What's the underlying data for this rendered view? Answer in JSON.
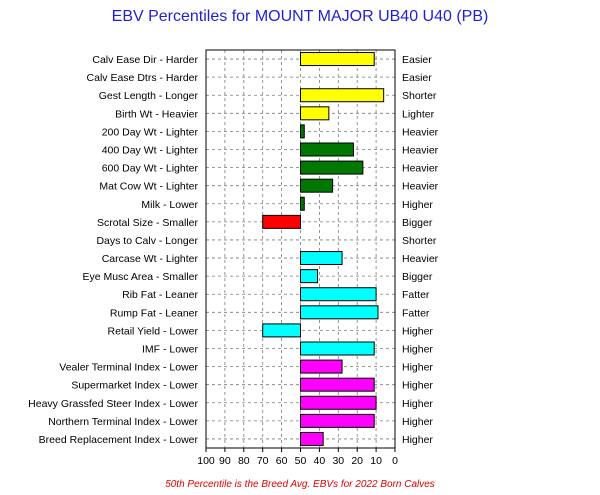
{
  "chart_data": {
    "type": "bar",
    "orientation": "horizontal",
    "title": "EBV Percentiles for MOUNT MAJOR UB40 U40 (PB)",
    "footnote": "50th Percentile is the Breed Avg. EBVs for 2022 Born Calves",
    "xlim": [
      100,
      0
    ],
    "xticks": [
      "100",
      "90",
      "80",
      "70",
      "60",
      "50",
      "40",
      "30",
      "20",
      "10",
      "0"
    ],
    "baseline": 50,
    "grid": true,
    "categories": [
      "Calv Ease Dir - Harder",
      "Calv Ease Dtrs - Harder",
      "Gest Length - Longer",
      "Birth Wt - Heavier",
      "200 Day Wt - Lighter",
      "400 Day Wt - Lighter",
      "600 Day Wt - Lighter",
      "Mat Cow Wt - Lighter",
      "Milk - Lower",
      "Scrotal Size - Smaller",
      "Days to Calv - Longer",
      "Carcase Wt - Lighter",
      "Eye Musc Area - Smaller",
      "Rib Fat - Leaner",
      "Rump Fat - Leaner",
      "Retail Yield - Lower",
      "IMF - Lower",
      "Vealer Terminal Index - Lower",
      "Supermarket Index - Lower",
      "Heavy Grassfed Steer Index - Lower",
      "Northern Terminal Index - Lower",
      "Breed Replacement Index - Lower"
    ],
    "right_labels": [
      "Easier",
      "Easier",
      "Shorter",
      "Lighter",
      "Heavier",
      "Heavier",
      "Heavier",
      "Heavier",
      "Higher",
      "Bigger",
      "Shorter",
      "Heavier",
      "Bigger",
      "Fatter",
      "Fatter",
      "Higher",
      "Higher",
      "Higher",
      "Higher",
      "Higher",
      "Higher",
      "Higher"
    ],
    "values": [
      11,
      null,
      6,
      35,
      48,
      22,
      17,
      33,
      48,
      70,
      null,
      28,
      41,
      10,
      9,
      70,
      11,
      28,
      11,
      10,
      11,
      38
    ],
    "colors": [
      "#ffff00",
      "#ffff00",
      "#ffff00",
      "#ffff00",
      "#007700",
      "#007700",
      "#007700",
      "#007700",
      "#007700",
      "#ff0000",
      "#ff0000",
      "#00ffff",
      "#00ffff",
      "#00ffff",
      "#00ffff",
      "#00ffff",
      "#00ffff",
      "#ff00ff",
      "#ff00ff",
      "#ff00ff",
      "#ff00ff",
      "#ff00ff"
    ]
  }
}
